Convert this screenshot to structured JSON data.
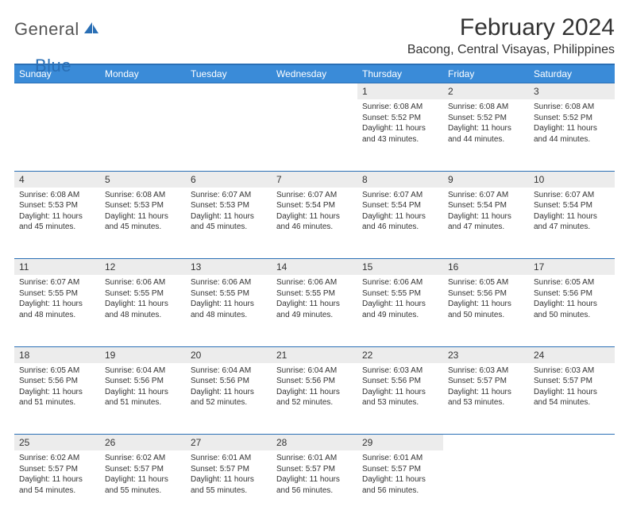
{
  "logo": {
    "general": "General",
    "blue": "Blue"
  },
  "title": "February 2024",
  "location": "Bacong, Central Visayas, Philippines",
  "colors": {
    "header_bg": "#3a8bd8",
    "header_text": "#ffffff",
    "border": "#2a6fb5",
    "daynum_bg": "#ececec",
    "text": "#333333",
    "logo_gray": "#555555",
    "logo_blue": "#2a6fb5"
  },
  "weekdays": [
    "Sunday",
    "Monday",
    "Tuesday",
    "Wednesday",
    "Thursday",
    "Friday",
    "Saturday"
  ],
  "weeks": [
    [
      null,
      null,
      null,
      null,
      {
        "n": "1",
        "sr": "6:08 AM",
        "ss": "5:52 PM",
        "dl": "11 hours and 43 minutes."
      },
      {
        "n": "2",
        "sr": "6:08 AM",
        "ss": "5:52 PM",
        "dl": "11 hours and 44 minutes."
      },
      {
        "n": "3",
        "sr": "6:08 AM",
        "ss": "5:52 PM",
        "dl": "11 hours and 44 minutes."
      }
    ],
    [
      {
        "n": "4",
        "sr": "6:08 AM",
        "ss": "5:53 PM",
        "dl": "11 hours and 45 minutes."
      },
      {
        "n": "5",
        "sr": "6:08 AM",
        "ss": "5:53 PM",
        "dl": "11 hours and 45 minutes."
      },
      {
        "n": "6",
        "sr": "6:07 AM",
        "ss": "5:53 PM",
        "dl": "11 hours and 45 minutes."
      },
      {
        "n": "7",
        "sr": "6:07 AM",
        "ss": "5:54 PM",
        "dl": "11 hours and 46 minutes."
      },
      {
        "n": "8",
        "sr": "6:07 AM",
        "ss": "5:54 PM",
        "dl": "11 hours and 46 minutes."
      },
      {
        "n": "9",
        "sr": "6:07 AM",
        "ss": "5:54 PM",
        "dl": "11 hours and 47 minutes."
      },
      {
        "n": "10",
        "sr": "6:07 AM",
        "ss": "5:54 PM",
        "dl": "11 hours and 47 minutes."
      }
    ],
    [
      {
        "n": "11",
        "sr": "6:07 AM",
        "ss": "5:55 PM",
        "dl": "11 hours and 48 minutes."
      },
      {
        "n": "12",
        "sr": "6:06 AM",
        "ss": "5:55 PM",
        "dl": "11 hours and 48 minutes."
      },
      {
        "n": "13",
        "sr": "6:06 AM",
        "ss": "5:55 PM",
        "dl": "11 hours and 48 minutes."
      },
      {
        "n": "14",
        "sr": "6:06 AM",
        "ss": "5:55 PM",
        "dl": "11 hours and 49 minutes."
      },
      {
        "n": "15",
        "sr": "6:06 AM",
        "ss": "5:55 PM",
        "dl": "11 hours and 49 minutes."
      },
      {
        "n": "16",
        "sr": "6:05 AM",
        "ss": "5:56 PM",
        "dl": "11 hours and 50 minutes."
      },
      {
        "n": "17",
        "sr": "6:05 AM",
        "ss": "5:56 PM",
        "dl": "11 hours and 50 minutes."
      }
    ],
    [
      {
        "n": "18",
        "sr": "6:05 AM",
        "ss": "5:56 PM",
        "dl": "11 hours and 51 minutes."
      },
      {
        "n": "19",
        "sr": "6:04 AM",
        "ss": "5:56 PM",
        "dl": "11 hours and 51 minutes."
      },
      {
        "n": "20",
        "sr": "6:04 AM",
        "ss": "5:56 PM",
        "dl": "11 hours and 52 minutes."
      },
      {
        "n": "21",
        "sr": "6:04 AM",
        "ss": "5:56 PM",
        "dl": "11 hours and 52 minutes."
      },
      {
        "n": "22",
        "sr": "6:03 AM",
        "ss": "5:56 PM",
        "dl": "11 hours and 53 minutes."
      },
      {
        "n": "23",
        "sr": "6:03 AM",
        "ss": "5:57 PM",
        "dl": "11 hours and 53 minutes."
      },
      {
        "n": "24",
        "sr": "6:03 AM",
        "ss": "5:57 PM",
        "dl": "11 hours and 54 minutes."
      }
    ],
    [
      {
        "n": "25",
        "sr": "6:02 AM",
        "ss": "5:57 PM",
        "dl": "11 hours and 54 minutes."
      },
      {
        "n": "26",
        "sr": "6:02 AM",
        "ss": "5:57 PM",
        "dl": "11 hours and 55 minutes."
      },
      {
        "n": "27",
        "sr": "6:01 AM",
        "ss": "5:57 PM",
        "dl": "11 hours and 55 minutes."
      },
      {
        "n": "28",
        "sr": "6:01 AM",
        "ss": "5:57 PM",
        "dl": "11 hours and 56 minutes."
      },
      {
        "n": "29",
        "sr": "6:01 AM",
        "ss": "5:57 PM",
        "dl": "11 hours and 56 minutes."
      },
      null,
      null
    ]
  ],
  "labels": {
    "sunrise": "Sunrise: ",
    "sunset": "Sunset: ",
    "daylight": "Daylight: "
  }
}
